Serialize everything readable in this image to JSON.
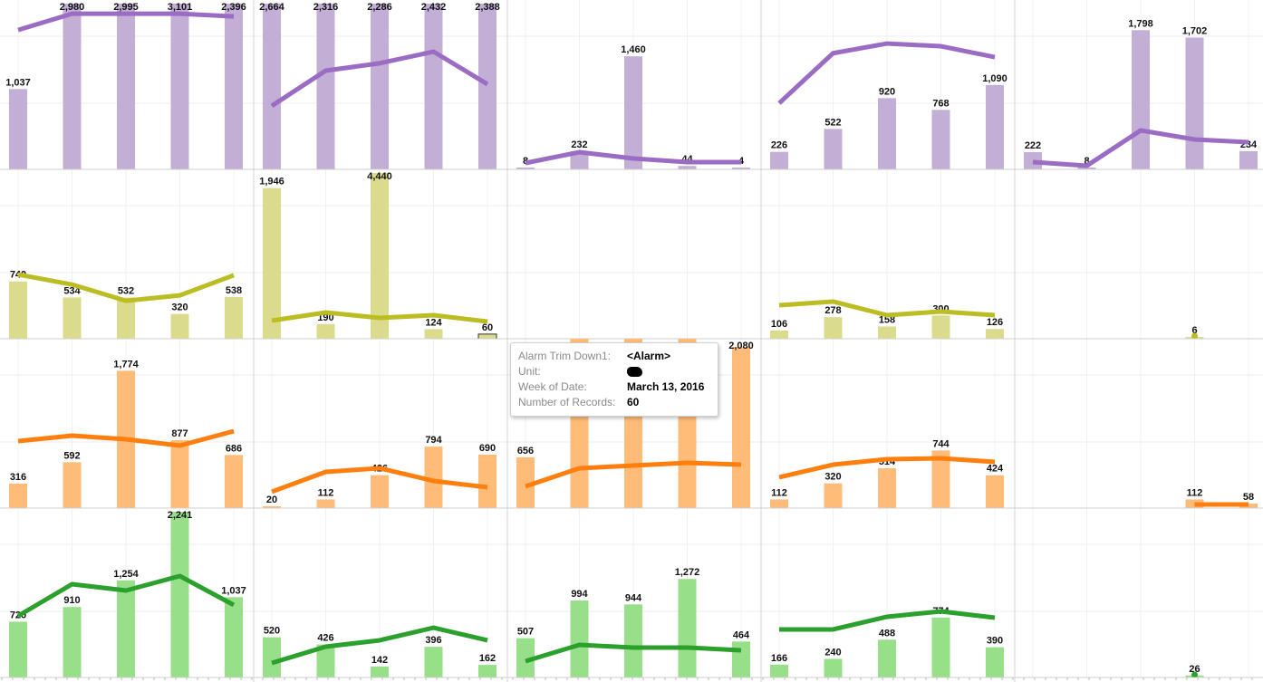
{
  "chart_data": {
    "type": "bar+line small multiples",
    "grid": true,
    "rows": [
      {
        "bar_color": "#c3aed6",
        "line_color": "#9b6cc4",
        "panels": [
          {
            "bars": [
              1037,
              2980,
              2995,
              3101,
              2396
            ],
            "line": [
              1800,
              2010,
              2010,
              2010,
              1975
            ]
          },
          {
            "bars": [
              2664,
              2316,
              2286,
              2432,
              2388
            ],
            "line": [
              820,
              1275,
              1370,
              1520,
              1100
            ]
          },
          {
            "bars": [
              8,
              232,
              1460,
              44,
              4
            ],
            "line": [
              82,
              222,
              140,
              94,
              94
            ]
          },
          {
            "bars": [
              226,
              522,
              920,
              768,
              1090
            ],
            "line": [
              855,
              1500,
              1625,
              1590,
              1450
            ]
          },
          {
            "bars": [
              222,
              8,
              1798,
              1702,
              234
            ],
            "line": [
              94,
              47,
              503,
              386,
              351
            ]
          }
        ]
      },
      {
        "bar_color": "#dbdb8d",
        "line_color": "#bcbd22",
        "panels": [
          {
            "bars": [
              740,
              534,
              532,
              320,
              538
            ],
            "line": [
              830,
              700,
              490,
              560,
              820
            ]
          },
          {
            "bars": [
              1946,
              190,
              4440,
              124,
              60
            ],
            "line": [
              234,
              339,
              269,
              304,
              222
            ],
            "selected": 4
          },
          {
            "bars": [
              null,
              null,
              null,
              null,
              null
            ],
            "line": [
              null,
              null,
              null,
              null,
              null
            ]
          },
          {
            "bars": [
              106,
              278,
              158,
              300,
              126
            ],
            "line": [
              433,
              480,
              304,
              351,
              304
            ]
          },
          {
            "bars": [
              null,
              null,
              null,
              6,
              null
            ],
            "line": [
              null,
              null,
              null,
              20,
              null
            ]
          }
        ]
      },
      {
        "bar_color": "#ffbb78",
        "line_color": "#ff7f0e",
        "panels": [
          {
            "bars": [
              316,
              592,
              1774,
              877,
              686
            ],
            "line": [
              865,
              936,
              889,
              807,
              994
            ]
          },
          {
            "bars": [
              20,
              112,
              426,
              794,
              690
            ],
            "line": [
              211,
              468,
              515,
              351,
              269
            ]
          },
          {
            "bars": [
              656,
              "hidden",
              "hidden",
              "hidden",
              2080
            ],
            "line": [
              281,
              515,
              550,
              585,
              561
            ]
          },
          {
            "bars": [
              112,
              320,
              514,
              744,
              424
            ],
            "line": [
              398,
              561,
              632,
              643,
              596
            ]
          },
          {
            "bars": [
              null,
              null,
              null,
              112,
              58
            ],
            "line": [
              null,
              null,
              null,
              47,
              47
            ]
          }
        ]
      },
      {
        "bar_color": "#98df8a",
        "line_color": "#2ca02c",
        "panels": [
          {
            "bars": [
              720,
              910,
              1254,
              2241,
              1037
            ],
            "line": [
              795,
              1205,
              1123,
              1310,
              936
            ]
          },
          {
            "bars": [
              520,
              426,
              142,
              396,
              162
            ],
            "line": [
              187,
              398,
              480,
              643,
              480
            ]
          },
          {
            "bars": [
              507,
              994,
              944,
              1272,
              464
            ],
            "line": [
              211,
              421,
              386,
              386,
              351
            ]
          },
          {
            "bars": [
              166,
              240,
              488,
              774,
              390
            ],
            "line": [
              620,
              620,
              784,
              854,
              772
            ]
          },
          {
            "bars": [
              null,
              null,
              null,
              26,
              null
            ],
            "line": [
              null,
              null,
              null,
              20,
              null
            ]
          }
        ]
      }
    ]
  },
  "tooltip": {
    "rows": [
      {
        "key": "Alarm Trim Down1:",
        "value": "<Alarm>"
      },
      {
        "key": "Unit:",
        "value": ""
      },
      {
        "key": "Week of Date:",
        "value": "March 13, 2016"
      },
      {
        "key": "Number of Records:",
        "value": "60"
      }
    ]
  }
}
